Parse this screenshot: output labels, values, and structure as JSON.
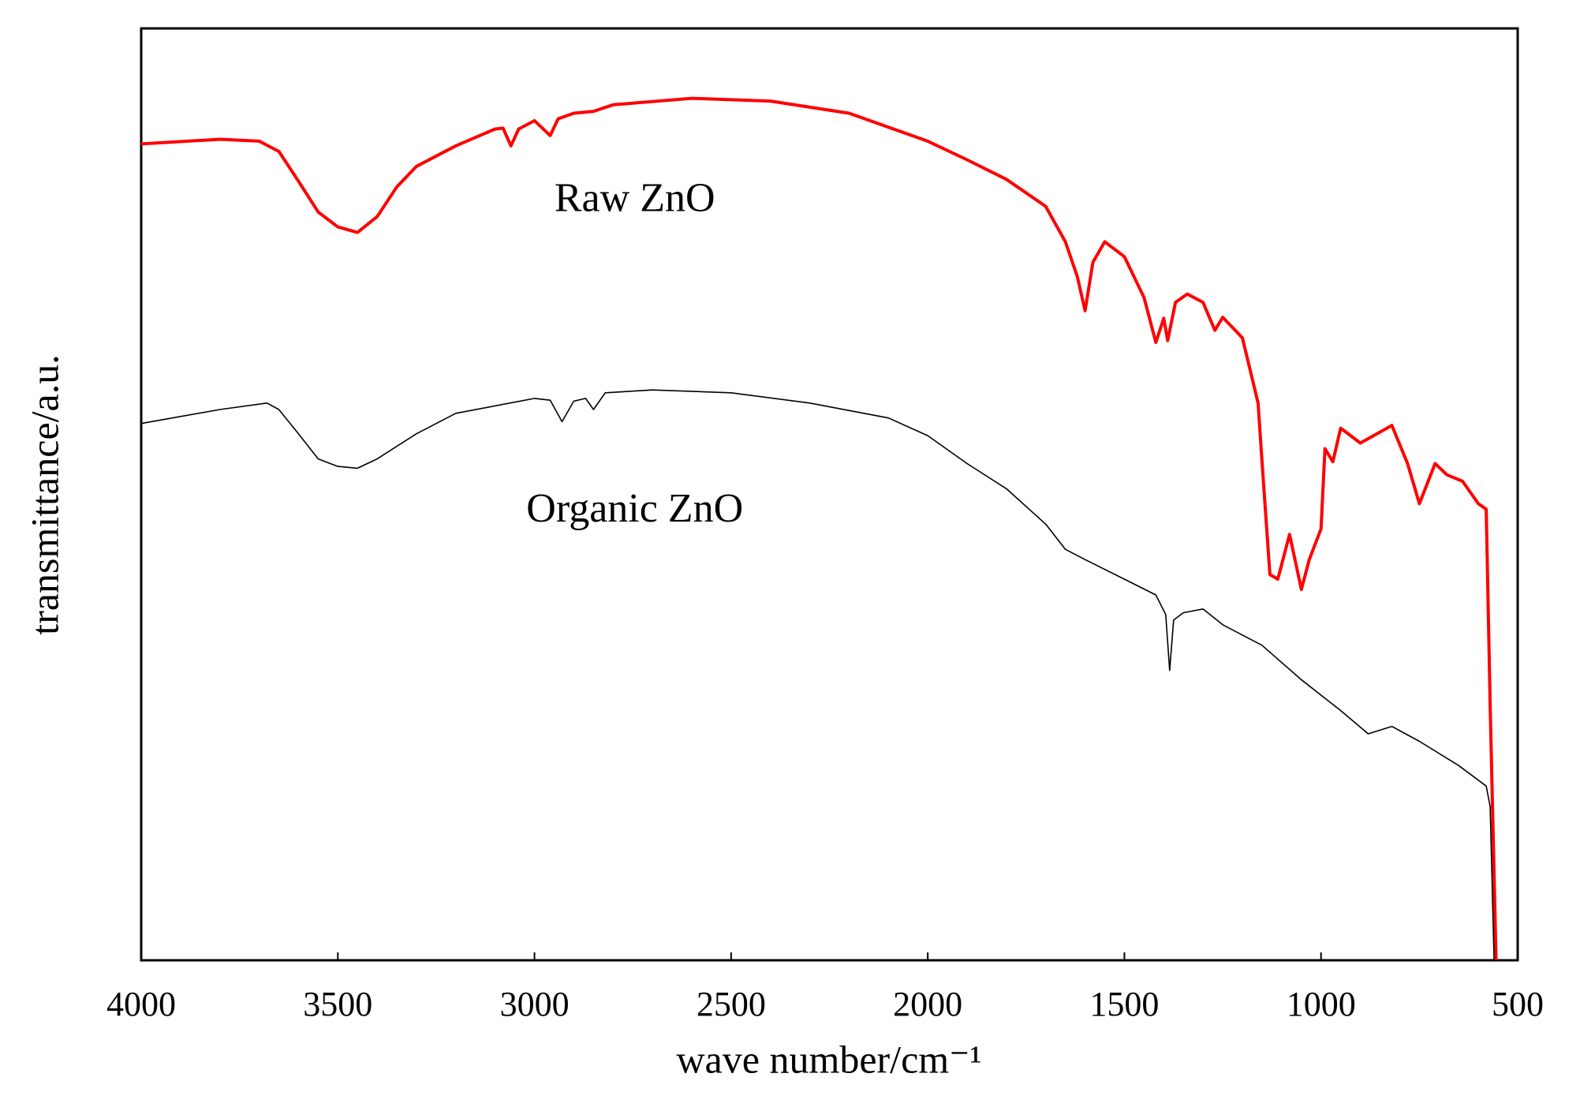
{
  "chart_data": {
    "type": "line",
    "x_label": "wave number/cm⁻¹",
    "y_label": "transmittance/a.u.",
    "xlim": [
      4000,
      500
    ],
    "xticks": [
      4000,
      3500,
      3000,
      2500,
      2000,
      1500,
      1000,
      500
    ],
    "ylim": [
      0,
      100
    ],
    "grid": false,
    "series": [
      {
        "name": "Raw ZnO",
        "color": "#ff0000",
        "x": [
          4000,
          3800,
          3700,
          3650,
          3600,
          3550,
          3500,
          3450,
          3400,
          3350,
          3300,
          3200,
          3100,
          3080,
          3060,
          3040,
          3000,
          2960,
          2940,
          2900,
          2850,
          2800,
          2600,
          2400,
          2200,
          2000,
          1900,
          1800,
          1700,
          1650,
          1620,
          1600,
          1580,
          1550,
          1500,
          1450,
          1420,
          1400,
          1390,
          1370,
          1340,
          1300,
          1270,
          1250,
          1200,
          1160,
          1150,
          1130,
          1110,
          1080,
          1050,
          1030,
          1000,
          990,
          970,
          950,
          900,
          820,
          780,
          750,
          710,
          680,
          640,
          600,
          580,
          570,
          555
        ],
        "values": [
          87.6,
          88.1,
          87.9,
          86.8,
          83.6,
          80.3,
          78.7,
          78.1,
          79.8,
          83.0,
          85.2,
          87.4,
          89.2,
          89.3,
          87.4,
          89.2,
          90.1,
          88.5,
          90.3,
          90.9,
          91.1,
          91.8,
          92.5,
          92.2,
          90.9,
          87.9,
          85.9,
          83.8,
          80.9,
          77.1,
          73.4,
          69.7,
          74.9,
          77.1,
          75.5,
          71.1,
          66.3,
          68.9,
          66.5,
          70.6,
          71.5,
          70.6,
          67.6,
          69.0,
          66.8,
          59.8,
          53.5,
          41.4,
          40.9,
          45.7,
          39.8,
          43.0,
          46.3,
          54.9,
          53.5,
          57.1,
          55.5,
          57.4,
          53.3,
          49.0,
          53.3,
          52.1,
          51.4,
          49.0,
          48.4,
          27.4,
          0
        ]
      },
      {
        "name": "Organic ZnO",
        "color": "#000000",
        "x": [
          4000,
          3800,
          3680,
          3650,
          3600,
          3550,
          3500,
          3450,
          3400,
          3300,
          3200,
          3000,
          2960,
          2930,
          2900,
          2870,
          2850,
          2820,
          2700,
          2500,
          2300,
          2100,
          2000,
          1900,
          1800,
          1700,
          1650,
          1600,
          1500,
          1420,
          1395,
          1385,
          1375,
          1350,
          1300,
          1250,
          1150,
          1050,
          950,
          880,
          820,
          750,
          650,
          580,
          570,
          560
        ],
        "values": [
          57.6,
          59.1,
          59.8,
          59.1,
          56.5,
          53.8,
          53.0,
          52.8,
          53.8,
          56.5,
          58.7,
          60.3,
          60.1,
          57.8,
          60.0,
          60.3,
          59.1,
          60.9,
          61.2,
          60.9,
          59.8,
          58.2,
          56.3,
          53.3,
          50.6,
          46.8,
          44.1,
          43.0,
          40.9,
          39.2,
          37.1,
          31.1,
          36.5,
          37.3,
          37.7,
          36.0,
          33.8,
          30.1,
          26.8,
          24.3,
          25.1,
          23.5,
          20.9,
          18.7,
          16.5,
          0
        ]
      }
    ]
  }
}
